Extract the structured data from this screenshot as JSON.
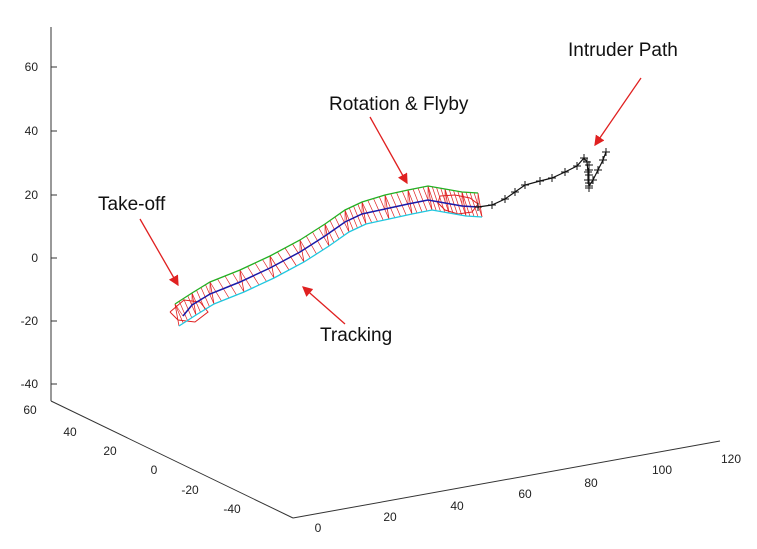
{
  "chart_data": {
    "type": "line",
    "title": "",
    "xlabel": "",
    "ylabel": "",
    "zlabel": "",
    "x_axis_ticks": [
      "0",
      "20",
      "40",
      "60",
      "80",
      "100",
      "120"
    ],
    "y_axis_ticks": [
      "60",
      "40",
      "20",
      "0",
      "-20",
      "-40"
    ],
    "z_axis_ticks": [
      "60",
      "40",
      "20",
      "0",
      "-20",
      "-40"
    ],
    "series_colors": {
      "path": "#1a1aa8",
      "mesh": "#e02020",
      "upper_edge": "#22b022",
      "lower_edge": "#20c8e0",
      "intruder": "#111111"
    },
    "annotations": [
      {
        "text": "Take-off"
      },
      {
        "text": "Rotation & Flyby"
      },
      {
        "text": "Tracking"
      },
      {
        "text": "Intruder Path"
      }
    ],
    "arrow_color": "#e02020"
  }
}
